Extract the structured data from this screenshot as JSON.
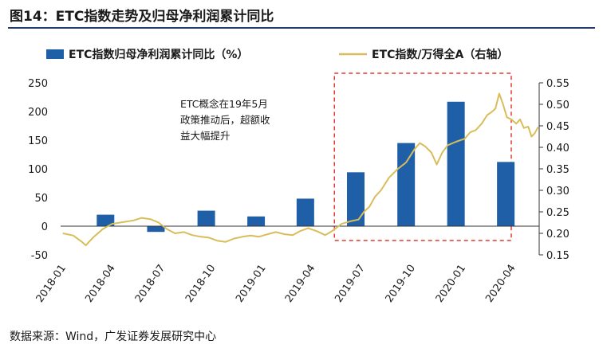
{
  "figure": {
    "title": "图14：ETC指数走势及归母净利润累计同比",
    "source": "数据来源：Wind，广发证券发展研究中心"
  },
  "chart_data": {
    "type": "bar+line",
    "legend": [
      {
        "name": "ETC指数归母净利润累计同比（%）",
        "kind": "bar",
        "color": "#1f5fa8"
      },
      {
        "name": "ETC指数/万得全A（右轴）",
        "kind": "line",
        "color": "#d9bd5a"
      }
    ],
    "y_left": {
      "min": -50,
      "max": 250,
      "ticks": [
        -50,
        0,
        50,
        100,
        150,
        200,
        250
      ]
    },
    "y_right": {
      "min": 0.15,
      "max": 0.55,
      "ticks": [
        "0.15",
        "0.20",
        "0.25",
        "0.30",
        "0.35",
        "0.40",
        "0.45",
        "0.50",
        "0.55"
      ]
    },
    "x_ticks": [
      "2018-01",
      "2018-04",
      "2018-07",
      "2018-10",
      "2019-01",
      "2019-04",
      "2019-07",
      "2019-10",
      "2020-01",
      "2020-04"
    ],
    "bars": {
      "name": "ETC指数归母净利润累计同比（%）",
      "x": [
        "2018-03",
        "2018-06",
        "2018-09",
        "2018-12",
        "2019-03",
        "2019-06",
        "2019-09",
        "2019-12",
        "2020-03"
      ],
      "values": [
        20,
        -10,
        27,
        17,
        48,
        94,
        145,
        217,
        112
      ]
    },
    "line": {
      "name": "ETC指数/万得全A（右轴）",
      "points": [
        [
          "2018-01-01",
          0.2
        ],
        [
          "2018-01-20",
          0.195
        ],
        [
          "2018-02-05",
          0.18
        ],
        [
          "2018-02-12",
          0.172
        ],
        [
          "2018-02-25",
          0.19
        ],
        [
          "2018-03-15",
          0.21
        ],
        [
          "2018-04-01",
          0.222
        ],
        [
          "2018-04-20",
          0.226
        ],
        [
          "2018-05-10",
          0.23
        ],
        [
          "2018-05-25",
          0.236
        ],
        [
          "2018-06-10",
          0.233
        ],
        [
          "2018-06-25",
          0.225
        ],
        [
          "2018-07-10",
          0.21
        ],
        [
          "2018-07-25",
          0.2
        ],
        [
          "2018-08-10",
          0.203
        ],
        [
          "2018-08-25",
          0.196
        ],
        [
          "2018-09-10",
          0.192
        ],
        [
          "2018-09-25",
          0.19
        ],
        [
          "2018-10-10",
          0.183
        ],
        [
          "2018-10-25",
          0.18
        ],
        [
          "2018-11-10",
          0.188
        ],
        [
          "2018-11-25",
          0.192
        ],
        [
          "2018-12-10",
          0.195
        ],
        [
          "2018-12-25",
          0.192
        ],
        [
          "2019-01-10",
          0.198
        ],
        [
          "2019-01-25",
          0.203
        ],
        [
          "2019-02-10",
          0.198
        ],
        [
          "2019-02-25",
          0.196
        ],
        [
          "2019-03-10",
          0.205
        ],
        [
          "2019-03-25",
          0.212
        ],
        [
          "2019-04-10",
          0.205
        ],
        [
          "2019-04-25",
          0.196
        ],
        [
          "2019-05-05",
          0.203
        ],
        [
          "2019-05-15",
          0.212
        ],
        [
          "2019-05-25",
          0.222
        ],
        [
          "2019-06-10",
          0.228
        ],
        [
          "2019-06-25",
          0.232
        ],
        [
          "2019-07-05",
          0.25
        ],
        [
          "2019-07-15",
          0.262
        ],
        [
          "2019-07-25",
          0.285
        ],
        [
          "2019-08-05",
          0.3
        ],
        [
          "2019-08-20",
          0.33
        ],
        [
          "2019-09-05",
          0.35
        ],
        [
          "2019-09-20",
          0.365
        ],
        [
          "2019-10-05",
          0.395
        ],
        [
          "2019-10-15",
          0.41
        ],
        [
          "2019-10-25",
          0.402
        ],
        [
          "2019-11-05",
          0.388
        ],
        [
          "2019-11-15",
          0.36
        ],
        [
          "2019-11-25",
          0.388
        ],
        [
          "2019-12-05",
          0.405
        ],
        [
          "2019-12-20",
          0.413
        ],
        [
          "2020-01-05",
          0.42
        ],
        [
          "2020-01-15",
          0.435
        ],
        [
          "2020-01-25",
          0.44
        ],
        [
          "2020-02-05",
          0.455
        ],
        [
          "2020-02-15",
          0.475
        ],
        [
          "2020-02-23",
          0.482
        ],
        [
          "2020-03-01",
          0.49
        ],
        [
          "2020-03-08",
          0.525
        ],
        [
          "2020-03-15",
          0.5
        ],
        [
          "2020-03-22",
          0.47
        ],
        [
          "2020-03-30",
          0.465
        ],
        [
          "2020-04-08",
          0.455
        ],
        [
          "2020-04-15",
          0.465
        ],
        [
          "2020-04-22",
          0.445
        ],
        [
          "2020-04-30",
          0.448
        ],
        [
          "2020-05-06",
          0.425
        ],
        [
          "2020-05-12",
          0.433
        ],
        [
          "2020-05-18",
          0.447
        ]
      ]
    },
    "annotation": {
      "lines": [
        "ETC概念在19年5月",
        "政策推动后，超额收",
        "益大幅提升"
      ]
    },
    "highlight": {
      "from": "2019-05",
      "to": "2020-03",
      "color": "#e03c31",
      "style": "dashed"
    }
  }
}
